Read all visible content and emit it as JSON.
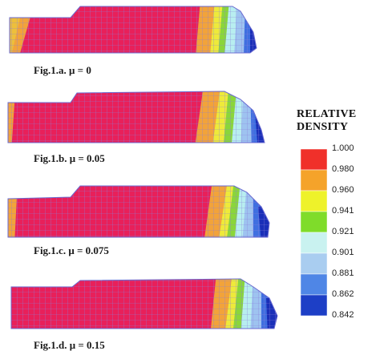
{
  "figures": [
    {
      "id": "a",
      "caption": "Fig.1.a.  μ  = 0"
    },
    {
      "id": "b",
      "caption": "Fig.1.b.  μ = 0.05"
    },
    {
      "id": "c",
      "caption": "Fig.1.c.   μ = 0.075"
    },
    {
      "id": "d",
      "caption": "Fig.1.d.   μ = 0.15"
    }
  ],
  "legend": {
    "title_line1": "RELATIVE",
    "title_line2": "DENSITY",
    "levels": [
      {
        "label": "1.000",
        "color": "#ee1133"
      },
      {
        "label": "0.980",
        "color": "#f0302a"
      },
      {
        "label": "0.960",
        "color": "#f5a32a"
      },
      {
        "label": "0.941",
        "color": "#eef22a"
      },
      {
        "label": "0.921",
        "color": "#7fdc2a"
      },
      {
        "label": "0.901",
        "color": "#c9f2f0"
      },
      {
        "label": "0.881",
        "color": "#a9cdf0"
      },
      {
        "label": "0.862",
        "color": "#4f86e6"
      },
      {
        "label": "0.842",
        "color": "#1d3fc6"
      }
    ]
  },
  "colors": {
    "body": "#e8205a",
    "mesh": "#7b7bd8",
    "orange": "#f2a33a",
    "yellow": "#eeea3a",
    "green": "#8ad63a",
    "cyan": "#b8eef0",
    "lightblue": "#9ec3f0",
    "blue": "#3f6fe0",
    "darkblue": "#1a2fb8"
  }
}
